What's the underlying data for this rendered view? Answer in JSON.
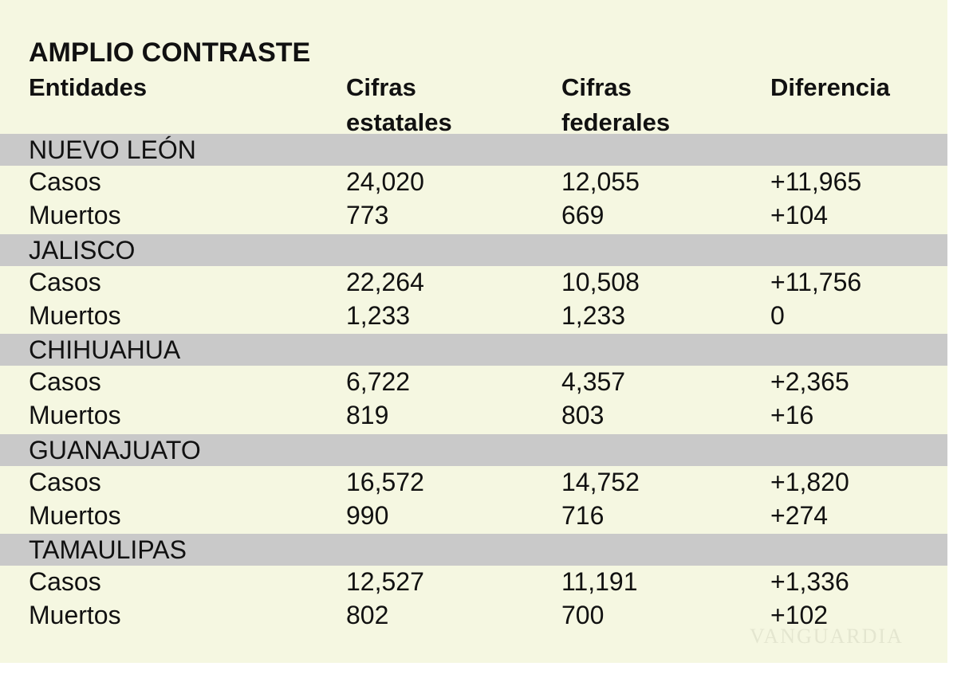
{
  "title": "AMPLIO CONTRASTE",
  "headers": [
    "Entidades",
    "Cifras estatales",
    "Cifras federales",
    "Diferencia"
  ],
  "groups": [
    {
      "name": "NUEVO LEÓN",
      "rows": [
        [
          "Casos",
          "24,020",
          "12,055",
          "+11,965"
        ],
        [
          "Muertos",
          "773",
          "669",
          "+104"
        ]
      ]
    },
    {
      "name": "JALISCO",
      "rows": [
        [
          "Casos",
          "22,264",
          "10,508",
          "+11,756"
        ],
        [
          "Muertos",
          "1,233",
          "1,233",
          "0"
        ]
      ]
    },
    {
      "name": "CHIHUAHUA",
      "rows": [
        [
          "Casos",
          "6,722",
          "4,357",
          "+2,365"
        ],
        [
          "Muertos",
          "819",
          "803",
          "+16"
        ]
      ]
    },
    {
      "name": "GUANAJUATO",
      "rows": [
        [
          "Casos",
          "16,572",
          "14,752",
          "+1,820"
        ],
        [
          "Muertos",
          "990",
          "716",
          "+274"
        ]
      ]
    },
    {
      "name": "TAMAULIPAS",
      "rows": [
        [
          "Casos",
          "12,527",
          "11,191",
          "+1,336"
        ],
        [
          "Muertos",
          "802",
          "700",
          "+102"
        ]
      ]
    }
  ],
  "watermark": "VANGUARDIA"
}
